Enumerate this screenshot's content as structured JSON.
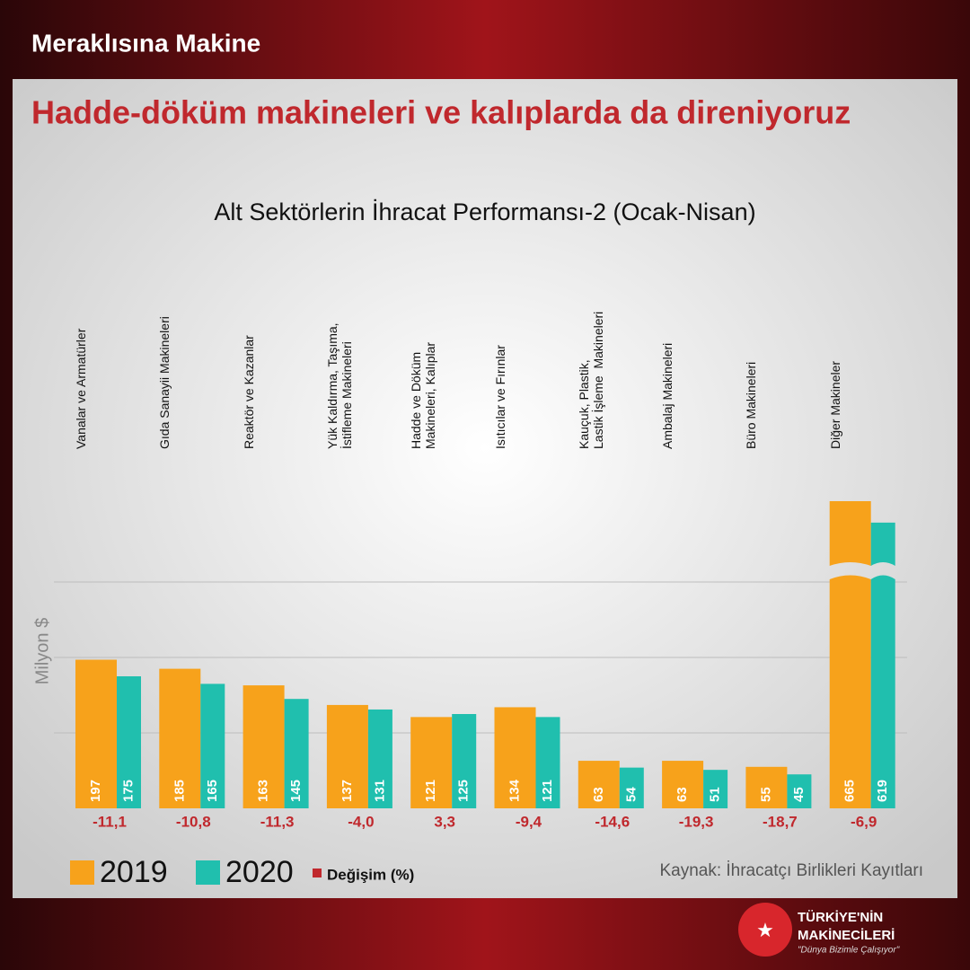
{
  "header": "Meraklısına Makine",
  "headline": "Hadde-döküm makineleri ve kalıplarda da direniyoruz",
  "chart_data": {
    "type": "bar",
    "title": "Alt Sektörlerin İhracat Performansı-2 (Ocak-Nisan)",
    "y_label": "Milyon $",
    "categories": [
      "Vanalar ve Armatürler",
      "Gıda Sanayii Makineleri",
      "Reaktör ve Kazanlar",
      "Yük Kaldırma, Taşıma,\nİstifleme Makineleri",
      "Hadde ve Döküm\nMakineleri, Kalıplar",
      "Isıtıcılar ve Fırınlar",
      "Kauçuk, Plastik,\nLastik İşleme  Makineleri",
      "Ambalaj Makineleri",
      "Büro Makineleri",
      "Diğer Makineler"
    ],
    "series": [
      {
        "name": "2019",
        "color": "#f7a21b",
        "values": [
          197,
          185,
          163,
          137,
          121,
          134,
          63,
          63,
          55,
          665
        ]
      },
      {
        "name": "2020",
        "color": "#20bfae",
        "values": [
          175,
          165,
          145,
          131,
          125,
          121,
          54,
          51,
          45,
          619
        ]
      }
    ],
    "change": {
      "name": "Değişim (%)",
      "color": "#c0282d",
      "values": [
        -11.1,
        -10.8,
        -11.3,
        -4.0,
        3.3,
        -9.4,
        -14.6,
        -19.3,
        -18.7,
        -6.9
      ],
      "value_labels": [
        "-11,1",
        "-10,8",
        "-11,3",
        "-4,0",
        "3,3",
        "-9,4",
        "-14,6",
        "-19,3",
        "-18,7",
        "-6,9"
      ]
    },
    "ylim": [
      0,
      400
    ],
    "gridlines": [
      100,
      200,
      300
    ],
    "axis_break": true
  },
  "source": "Kaynak: İhracatçı Birlikleri Kayıtları",
  "logo": {
    "line1": "TÜRKİYE'NİN",
    "line2": "MAKİNECİLERİ",
    "slogan": "\"Dünya Bizimle Çalışıyor\""
  }
}
